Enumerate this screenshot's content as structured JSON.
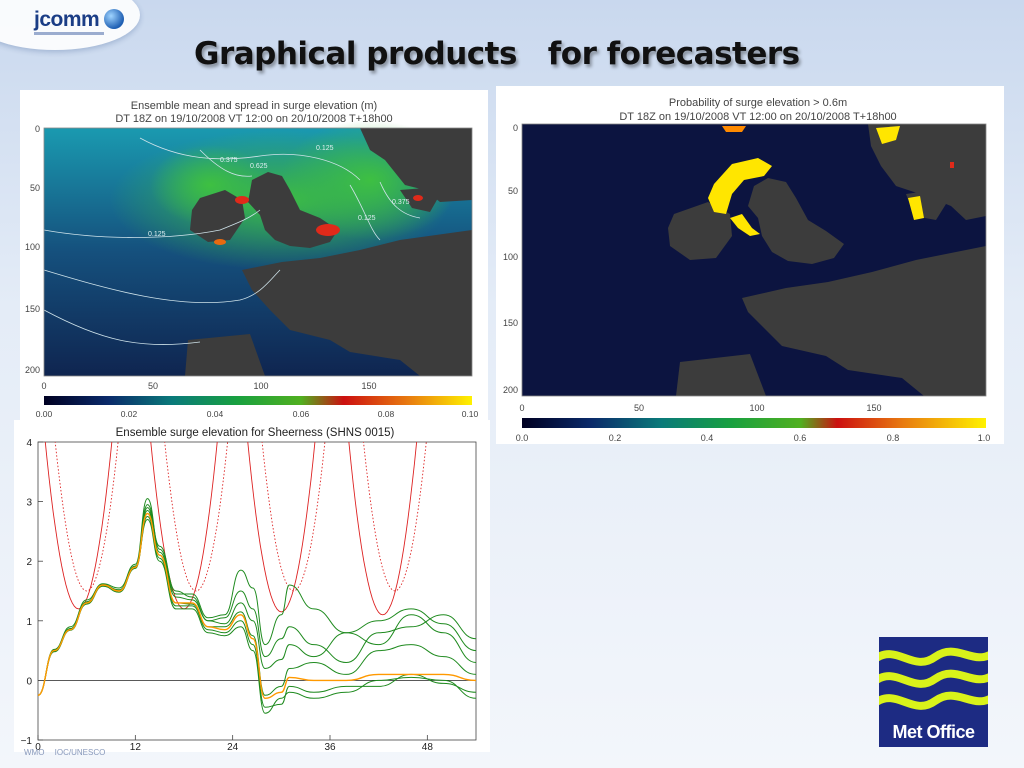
{
  "logo": {
    "text": "jcomm"
  },
  "slide": {
    "title": "Graphical products   for forecasters"
  },
  "map_mean": {
    "title": "Ensemble mean and spread in surge elevation (m)",
    "subtitle": "DT 18Z on 19/10/2008   VT 12:00 on 20/10/2008    T+18h00",
    "y_ticks": [
      "0",
      "50",
      "100",
      "150",
      "200"
    ],
    "x_ticks": [
      "0",
      "50",
      "100",
      "150"
    ],
    "colorbar_ticks": [
      "0.00",
      "0.02",
      "0.04",
      "0.06",
      "0.08",
      "0.10"
    ],
    "contour_labels": [
      "0.375",
      "0.625",
      "0.125",
      "0.125",
      "0.375",
      "0.125"
    ]
  },
  "map_prob": {
    "title": "Probability of surge elevation > 0.6m",
    "subtitle": "DT 18Z on 19/10/2008   VT 12:00 on 20/10/2008    T+18h00",
    "y_ticks": [
      "0",
      "50",
      "100",
      "150",
      "200"
    ],
    "x_ticks": [
      "0",
      "50",
      "100",
      "150"
    ],
    "colorbar_ticks": [
      "0.0",
      "0.2",
      "0.4",
      "0.6",
      "0.8",
      "1.0"
    ]
  },
  "chart_data": {
    "type": "line",
    "title": "Ensemble surge elevation for Sheerness (SHNS 0015)",
    "xlabel": "",
    "ylabel": "",
    "xlim": [
      0,
      54
    ],
    "ylim": [
      -1,
      4
    ],
    "x_ticks": [
      0,
      12,
      24,
      36,
      48
    ],
    "y_ticks": [
      -1,
      0,
      1,
      2,
      3,
      4
    ],
    "grid": false,
    "reference_line_y": 0,
    "ensemble_mean": {
      "x": [
        0,
        2,
        4,
        6,
        8,
        10,
        12,
        13.5,
        15,
        17,
        19,
        21,
        23,
        25,
        26.5,
        28,
        30,
        31,
        34,
        38,
        42,
        46,
        50,
        54
      ],
      "y": [
        -0.25,
        0.5,
        0.85,
        1.3,
        1.6,
        1.5,
        1.9,
        2.8,
        2.1,
        1.3,
        1.3,
        0.9,
        0.85,
        1.1,
        0.7,
        -0.3,
        -0.2,
        0.05,
        0.0,
        0.0,
        0.1,
        0.1,
        0.1,
        0.0
      ]
    },
    "ensemble_members": [
      {
        "y": [
          -0.25,
          0.52,
          0.9,
          1.35,
          1.62,
          1.55,
          1.95,
          3.05,
          2.2,
          1.45,
          1.45,
          1.05,
          1.1,
          1.85,
          1.55,
          0.6,
          1.1,
          1.6,
          1.2,
          0.8,
          1.0,
          1.2,
          0.95,
          0.5
        ]
      },
      {
        "y": [
          -0.25,
          0.5,
          0.87,
          1.32,
          1.6,
          1.52,
          1.92,
          2.9,
          2.15,
          1.4,
          1.35,
          1.0,
          0.95,
          1.3,
          1.0,
          0.2,
          0.35,
          0.6,
          0.4,
          0.8,
          0.6,
          1.1,
          0.8,
          0.3
        ]
      },
      {
        "y": [
          -0.25,
          0.48,
          0.84,
          1.28,
          1.58,
          1.48,
          1.88,
          2.75,
          2.05,
          1.25,
          1.25,
          0.85,
          0.8,
          1.0,
          0.6,
          -0.45,
          -0.4,
          -0.1,
          -0.2,
          -0.1,
          -0.1,
          0.1,
          -0.05,
          -0.2
        ]
      },
      {
        "y": [
          -0.25,
          0.49,
          0.85,
          1.3,
          1.59,
          1.5,
          1.9,
          2.85,
          2.1,
          1.3,
          1.28,
          0.9,
          0.9,
          1.15,
          0.75,
          -0.25,
          -0.1,
          0.2,
          0.3,
          0.1,
          0.5,
          0.6,
          0.4,
          0.1
        ]
      },
      {
        "y": [
          -0.25,
          0.51,
          0.86,
          1.31,
          1.61,
          1.51,
          1.91,
          2.7,
          2.0,
          1.2,
          1.2,
          0.8,
          0.75,
          0.9,
          0.5,
          -0.55,
          -0.3,
          -0.2,
          -0.3,
          -0.2,
          0.0,
          0.05,
          0.0,
          -0.3
        ]
      },
      {
        "y": [
          -0.25,
          0.5,
          0.85,
          1.3,
          1.6,
          1.5,
          1.9,
          2.95,
          2.25,
          1.5,
          1.4,
          1.0,
          1.05,
          1.5,
          1.2,
          0.4,
          0.7,
          0.9,
          0.6,
          0.3,
          0.8,
          0.9,
          1.1,
          0.7
        ]
      }
    ],
    "tidal_curves": [
      {
        "style": "solid",
        "minima_x": [
          5,
          18,
          30,
          42.5
        ],
        "minima_y": [
          1.2,
          1.2,
          1.15,
          1.1
        ]
      },
      {
        "style": "dotted",
        "minima_x": [
          6,
          19.5,
          31.5,
          44
        ],
        "minima_y": [
          1.5,
          1.5,
          1.5,
          1.5
        ]
      }
    ],
    "colors": {
      "members": "#1e8a1e",
      "mean": "#ff9900",
      "tide": "#dd2222"
    }
  },
  "footer": {
    "text": "WMO  IOC/UNESCO"
  },
  "met_office": {
    "label": "Met Office"
  }
}
